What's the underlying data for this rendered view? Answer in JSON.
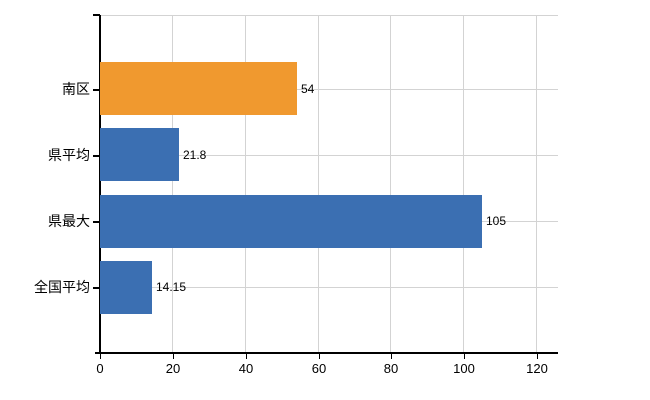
{
  "chart_data": {
    "type": "bar",
    "orientation": "horizontal",
    "title": "",
    "xlabel": "",
    "ylabel": "",
    "categories": [
      "南区",
      "県平均",
      "県最大",
      "全国平均"
    ],
    "values": [
      54,
      21.8,
      105,
      14.15
    ],
    "value_labels": [
      "54",
      "21.8",
      "105",
      "14.15"
    ],
    "bar_colors": [
      "#f0992f",
      "#3b6fb2",
      "#3b6fb2",
      "#3b6fb2"
    ],
    "highlighted_category": "南区",
    "x_ticks": [
      0,
      20,
      40,
      60,
      80,
      100,
      120
    ],
    "xlim": [
      0,
      125.5
    ],
    "grid": true,
    "legend_position": "none"
  },
  "colors": {
    "bar_highlight": "#f0992f",
    "bar_default": "#3b6fb2",
    "gridline": "#d3d3d3",
    "axis": "#000000",
    "text": "#000000",
    "background": "#ffffff"
  }
}
